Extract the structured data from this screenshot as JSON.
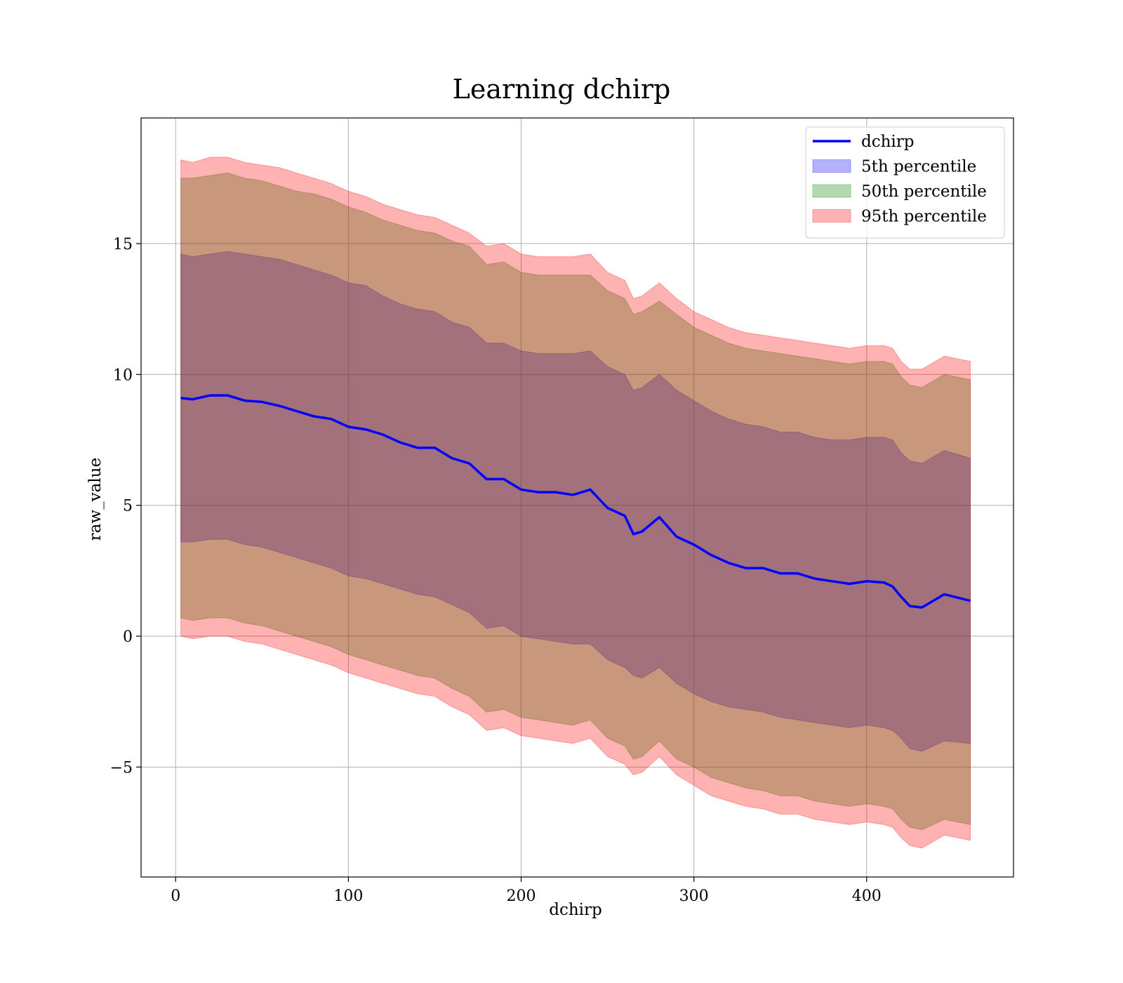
{
  "chart_data": {
    "type": "area",
    "title": "Learning dchirp",
    "xlabel": "dchirp",
    "ylabel": "raw_value",
    "xlim": [
      -20,
      485
    ],
    "ylim": [
      -9.2,
      19.8
    ],
    "xticks": [
      0,
      100,
      200,
      300,
      400
    ],
    "yticks": [
      -5,
      0,
      5,
      10,
      15
    ],
    "xtick_labels": [
      "0",
      "100",
      "200",
      "300",
      "400"
    ],
    "ytick_labels": [
      "−5",
      "0",
      "5",
      "10",
      "15"
    ],
    "grid": true,
    "legend_position": "top-right",
    "x": [
      3,
      10,
      20,
      30,
      40,
      50,
      60,
      70,
      80,
      90,
      100,
      110,
      120,
      130,
      140,
      150,
      160,
      170,
      180,
      190,
      200,
      210,
      220,
      230,
      240,
      250,
      260,
      265,
      270,
      280,
      290,
      300,
      310,
      320,
      330,
      340,
      350,
      360,
      370,
      380,
      390,
      400,
      410,
      415,
      420,
      425,
      432,
      445,
      460
    ],
    "series": [
      {
        "name": "dchirp",
        "kind": "line",
        "color": "#0000ff",
        "values": [
          9.1,
          9.05,
          9.2,
          9.2,
          9.0,
          8.95,
          8.8,
          8.6,
          8.4,
          8.3,
          8.0,
          7.9,
          7.7,
          7.4,
          7.2,
          7.2,
          6.8,
          6.6,
          6.0,
          6.0,
          5.6,
          5.5,
          5.5,
          5.4,
          5.6,
          4.9,
          4.6,
          3.9,
          4.0,
          4.55,
          3.8,
          3.5,
          3.1,
          2.8,
          2.6,
          2.6,
          2.4,
          2.4,
          2.2,
          2.1,
          2.0,
          2.1,
          2.05,
          1.9,
          1.5,
          1.15,
          1.1,
          1.6,
          1.35
        ]
      },
      {
        "name": "5th percentile",
        "kind": "band",
        "color": "#0000ff",
        "lower": [
          3.6,
          3.6,
          3.7,
          3.7,
          3.5,
          3.4,
          3.2,
          3.0,
          2.8,
          2.6,
          2.3,
          2.2,
          2.0,
          1.8,
          1.6,
          1.5,
          1.2,
          0.9,
          0.3,
          0.4,
          0.0,
          -0.1,
          -0.2,
          -0.3,
          -0.3,
          -0.9,
          -1.2,
          -1.5,
          -1.6,
          -1.2,
          -1.8,
          -2.2,
          -2.5,
          -2.7,
          -2.8,
          -2.9,
          -3.1,
          -3.2,
          -3.3,
          -3.4,
          -3.5,
          -3.4,
          -3.5,
          -3.6,
          -3.9,
          -4.3,
          -4.4,
          -4.0,
          -4.1
        ],
        "upper": [
          14.6,
          14.5,
          14.6,
          14.7,
          14.6,
          14.5,
          14.4,
          14.2,
          14.0,
          13.8,
          13.5,
          13.4,
          13.0,
          12.7,
          12.5,
          12.4,
          12.0,
          11.8,
          11.2,
          11.2,
          10.9,
          10.8,
          10.8,
          10.8,
          10.9,
          10.3,
          10.0,
          9.4,
          9.5,
          10.0,
          9.4,
          9.0,
          8.6,
          8.3,
          8.1,
          8.0,
          7.8,
          7.8,
          7.6,
          7.5,
          7.5,
          7.6,
          7.6,
          7.5,
          7.0,
          6.7,
          6.6,
          7.1,
          6.8
        ]
      },
      {
        "name": "50th percentile",
        "kind": "band",
        "color": "#008000",
        "lower": [
          0.7,
          0.6,
          0.7,
          0.7,
          0.5,
          0.4,
          0.2,
          0.0,
          -0.2,
          -0.4,
          -0.7,
          -0.9,
          -1.1,
          -1.3,
          -1.5,
          -1.6,
          -2.0,
          -2.3,
          -2.9,
          -2.8,
          -3.1,
          -3.2,
          -3.3,
          -3.4,
          -3.2,
          -3.9,
          -4.2,
          -4.7,
          -4.6,
          -4.0,
          -4.7,
          -5.0,
          -5.4,
          -5.6,
          -5.8,
          -5.9,
          -6.1,
          -6.1,
          -6.3,
          -6.4,
          -6.5,
          -6.4,
          -6.5,
          -6.6,
          -7.0,
          -7.3,
          -7.4,
          -7.0,
          -7.2
        ],
        "upper": [
          17.5,
          17.5,
          17.6,
          17.7,
          17.5,
          17.4,
          17.2,
          17.0,
          16.9,
          16.7,
          16.4,
          16.2,
          15.9,
          15.7,
          15.5,
          15.4,
          15.1,
          14.9,
          14.2,
          14.3,
          13.9,
          13.8,
          13.8,
          13.8,
          13.8,
          13.2,
          12.9,
          12.3,
          12.4,
          12.8,
          12.3,
          11.8,
          11.5,
          11.2,
          11.0,
          10.9,
          10.8,
          10.7,
          10.6,
          10.5,
          10.4,
          10.5,
          10.5,
          10.4,
          9.9,
          9.6,
          9.5,
          10.0,
          9.8
        ]
      },
      {
        "name": "95th percentile",
        "kind": "band",
        "color": "#ff0000",
        "lower": [
          0.0,
          -0.1,
          0.0,
          0.0,
          -0.2,
          -0.3,
          -0.5,
          -0.7,
          -0.9,
          -1.1,
          -1.4,
          -1.6,
          -1.8,
          -2.0,
          -2.2,
          -2.3,
          -2.7,
          -3.0,
          -3.6,
          -3.5,
          -3.8,
          -3.9,
          -4.0,
          -4.1,
          -3.9,
          -4.6,
          -4.9,
          -5.3,
          -5.2,
          -4.6,
          -5.3,
          -5.7,
          -6.1,
          -6.3,
          -6.5,
          -6.6,
          -6.8,
          -6.8,
          -7.0,
          -7.1,
          -7.2,
          -7.1,
          -7.2,
          -7.3,
          -7.7,
          -8.0,
          -8.1,
          -7.6,
          -7.8
        ],
        "upper": [
          18.2,
          18.1,
          18.3,
          18.3,
          18.1,
          18.0,
          17.9,
          17.7,
          17.5,
          17.3,
          17.0,
          16.8,
          16.5,
          16.3,
          16.1,
          16.0,
          15.7,
          15.4,
          14.9,
          15.0,
          14.6,
          14.5,
          14.5,
          14.5,
          14.6,
          13.9,
          13.6,
          12.9,
          13.0,
          13.5,
          12.9,
          12.4,
          12.1,
          11.8,
          11.6,
          11.5,
          11.4,
          11.3,
          11.2,
          11.1,
          11.0,
          11.1,
          11.1,
          11.0,
          10.5,
          10.2,
          10.2,
          10.7,
          10.5
        ]
      }
    ]
  }
}
